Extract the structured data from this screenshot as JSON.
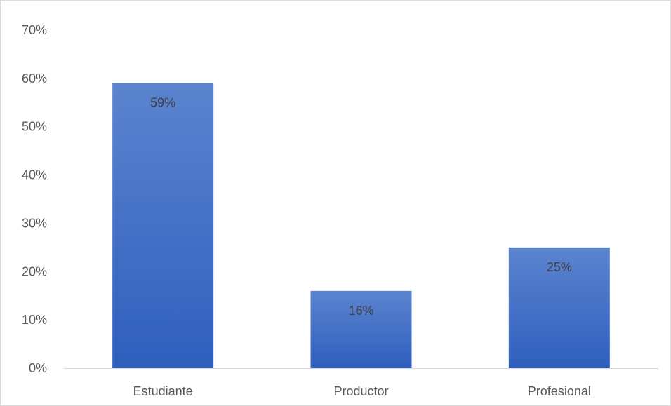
{
  "chart_data": {
    "type": "bar",
    "title": "",
    "xlabel": "",
    "ylabel": "",
    "categories": [
      "Estudiante",
      "Productor",
      "Profesional"
    ],
    "values": [
      59,
      16,
      25
    ],
    "data_labels": [
      "59%",
      "16%",
      "25%"
    ],
    "ylim": [
      0,
      70
    ],
    "yticks": [
      0,
      10,
      20,
      30,
      40,
      50,
      60,
      70
    ],
    "ytick_labels": [
      "0%",
      "10%",
      "20%",
      "30%",
      "40%",
      "50%",
      "60%",
      "70%"
    ],
    "grid": false,
    "legend": "none",
    "colors": {
      "bar_top": "#5b84cf",
      "bar_bottom": "#2f5fbe",
      "axis": "#d9d9d9",
      "text": "#595959"
    }
  }
}
